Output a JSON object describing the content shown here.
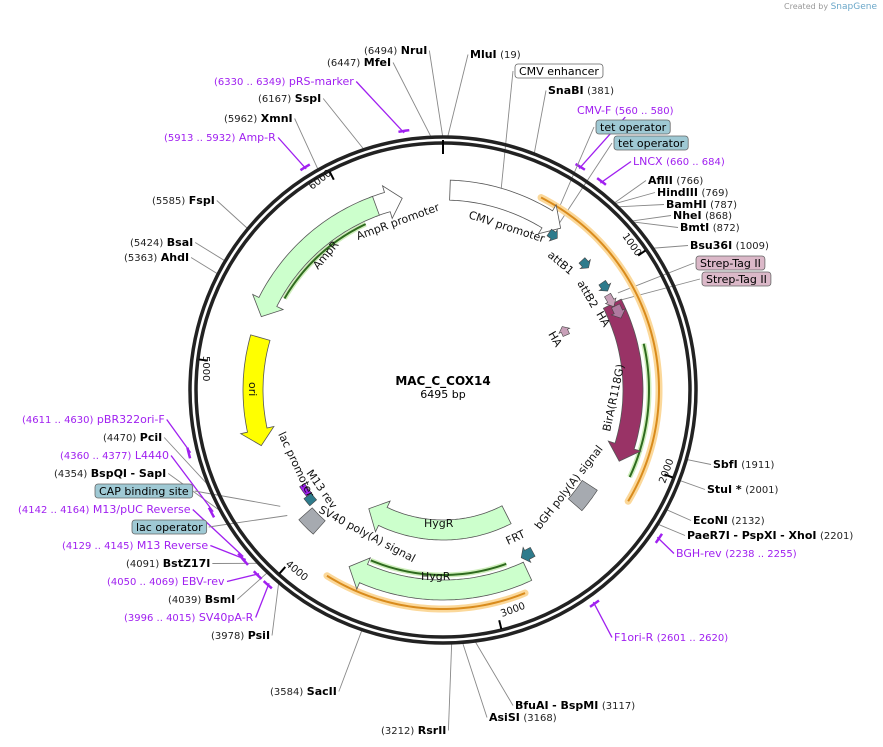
{
  "credit": {
    "prefix": "Created by",
    "brand": "SnapGene"
  },
  "plasmid": {
    "name": "MAC_C_COX14",
    "length": "6495 bp"
  },
  "ticks": [
    "1000",
    "2000",
    "3000",
    "4000",
    "5000",
    "6000"
  ],
  "enzymes": [
    {
      "pos": "(6494)",
      "name": "NruI"
    },
    {
      "pos": "(6447)",
      "name": "MfeI"
    },
    {
      "pos": "(19)",
      "name": "MluI"
    },
    {
      "pos": "(381)",
      "name": "SnaBI"
    },
    {
      "pos": "(6167)",
      "name": "SspI"
    },
    {
      "pos": "(5962)",
      "name": "XmnI"
    },
    {
      "pos": "(766)",
      "name": "AflII"
    },
    {
      "pos": "(769)",
      "name": "HindIII"
    },
    {
      "pos": "(787)",
      "name": "BamHI"
    },
    {
      "pos": "(868)",
      "name": "NheI"
    },
    {
      "pos": "(872)",
      "name": "BmtI"
    },
    {
      "pos": "(1009)",
      "name": "Bsu36I"
    },
    {
      "pos": "(5585)",
      "name": "FspI"
    },
    {
      "pos": "(5424)",
      "name": "BsaI"
    },
    {
      "pos": "(5363)",
      "name": "AhdI"
    },
    {
      "pos": "(4470)",
      "name": "PciI"
    },
    {
      "pos": "(4354)",
      "name": "BspQI",
      "alt": "- SapI"
    },
    {
      "pos": "(4091)",
      "name": "BstZ17I"
    },
    {
      "pos": "(4039)",
      "name": "BsmI"
    },
    {
      "pos": "(3978)",
      "name": "PsiI"
    },
    {
      "pos": "(3584)",
      "name": "SacII"
    },
    {
      "pos": "(3117)",
      "name": "BfuAI",
      "alt": "- BspMI"
    },
    {
      "pos": "(3168)",
      "name": "AsiSI"
    },
    {
      "pos": "(3212)",
      "name": "RsrII"
    },
    {
      "pos": "(1911)",
      "name": "SbfI"
    },
    {
      "pos": "(2001)",
      "name": "StuI *"
    },
    {
      "pos": "(2132)",
      "name": "EcoNI"
    },
    {
      "pos": "(2201)",
      "name": "PaeR7I",
      "alt": "- PspXI",
      "alt2": "- XhoI"
    }
  ],
  "primers": [
    {
      "range": "(6330 .. 6349)",
      "name": "pRS-marker"
    },
    {
      "range": "(5913 .. 5932)",
      "name": "Amp-R"
    },
    {
      "range": "(560 .. 580)",
      "name": "CMV-F"
    },
    {
      "range": "(660 .. 684)",
      "name": "LNCX"
    },
    {
      "range": "(4611 .. 4630)",
      "name": "pBR322ori-F"
    },
    {
      "range": "(4360 .. 4377)",
      "name": "L4440"
    },
    {
      "range": "(4142 .. 4164)",
      "name": "M13/pUC Reverse"
    },
    {
      "range": "(4129 .. 4145)",
      "name": "M13 Reverse"
    },
    {
      "range": "(4050 .. 4069)",
      "name": "EBV-rev"
    },
    {
      "range": "(3996 .. 4015)",
      "name": "SV40pA-R"
    },
    {
      "range": "(2238 .. 2255)",
      "name": "BGH-rev"
    },
    {
      "range": "(2601 .. 2620)",
      "name": "F1ori-R"
    }
  ],
  "boxed": [
    {
      "name": "CMV enhancer",
      "color": "#ffffff"
    },
    {
      "name": "tet operator",
      "color": "#9fc9d4"
    },
    {
      "name": "tet operator",
      "color": "#9fc9d4"
    },
    {
      "name": "Strep-Tag II",
      "color": "#dbb8c8"
    },
    {
      "name": "Strep-Tag II",
      "color": "#dbb8c8"
    },
    {
      "name": "CAP binding site",
      "color": "#9fc9d4"
    },
    {
      "name": "lac operator",
      "color": "#9fc9d4"
    }
  ],
  "features": {
    "cmv_promoter": "CMV promoter",
    "ampr_promoter": "AmpR promoter",
    "ampr": "AmpR",
    "ori": "ori",
    "attb1": "attB1",
    "attb2": "attB2",
    "ha1": "HA",
    "ha2": "HA",
    "bira": "BirA(R118G)",
    "bgh": "bGH poly(A) signal",
    "frt": "FRT",
    "hygr1": "HygR",
    "hygr2": "HygR",
    "sv40": "SV40 poly(A) signal",
    "m13rev": "M13 rev",
    "lac": "lac promoter"
  },
  "colors": {
    "primer": "#a020f0",
    "ampr": "#ccffcc",
    "ori": "#ffff00",
    "bira": "#993366",
    "teal": "#2e7b8c",
    "orange": "#f5b041"
  }
}
